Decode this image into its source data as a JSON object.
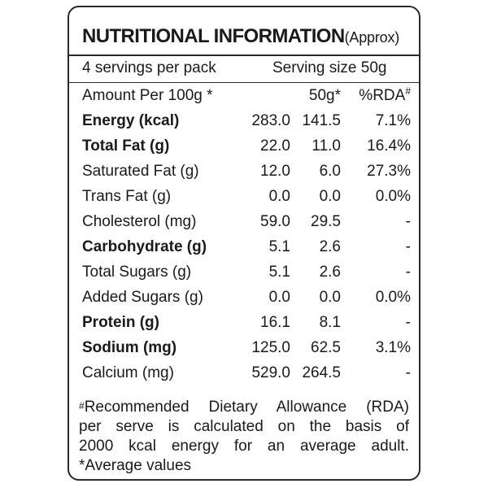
{
  "title": "NUTRITIONAL INFORMATION",
  "title_suffix": "(Approx)",
  "servings_per_pack": "4 servings per pack",
  "serving_size": "Serving size 50g",
  "header": {
    "amount": "Amount Per 100g *",
    "col50": "50g*",
    "rda": "%RDA",
    "rda_mark": "#"
  },
  "rows": [
    {
      "name": "Energy (kcal)",
      "per100": "283.0",
      "per50": "141.5",
      "rda": "7.1%",
      "bold": true
    },
    {
      "name": "Total Fat (g)",
      "per100": "22.0",
      "per50": "11.0",
      "rda": "16.4%",
      "bold": true
    },
    {
      "name": "Saturated Fat (g)",
      "per100": "12.0",
      "per50": "6.0",
      "rda": "27.3%",
      "bold": false
    },
    {
      "name": "Trans Fat (g)",
      "per100": "0.0",
      "per50": "0.0",
      "rda": "0.0%",
      "bold": false
    },
    {
      "name": "Cholesterol (mg)",
      "per100": "59.0",
      "per50": "29.5",
      "rda": "-",
      "bold": false
    },
    {
      "name": "Carbohydrate (g)",
      "per100": "5.1",
      "per50": "2.6",
      "rda": "-",
      "bold": true
    },
    {
      "name": "Total Sugars (g)",
      "per100": "5.1",
      "per50": "2.6",
      "rda": "-",
      "bold": false
    },
    {
      "name": "Added Sugars (g)",
      "per100": "0.0",
      "per50": "0.0",
      "rda": "0.0%",
      "bold": false
    },
    {
      "name": "Protein (g)",
      "per100": "16.1",
      "per50": "8.1",
      "rda": "-",
      "bold": true
    },
    {
      "name": "Sodium (mg)",
      "per100": "125.0",
      "per50": "62.5",
      "rda": "3.1%",
      "bold": true
    },
    {
      "name": "Calcium (mg)",
      "per100": "529.0",
      "per50": "264.5",
      "rda": "-",
      "bold": false
    }
  ],
  "footnote": {
    "rda_mark": "#",
    "line1": "Recommended Dietary Allowance (RDA)",
    "line2": "per serve is calculated on the basis of",
    "line3": "2000 kcal energy for an average adult.",
    "line4": "*Average values"
  }
}
